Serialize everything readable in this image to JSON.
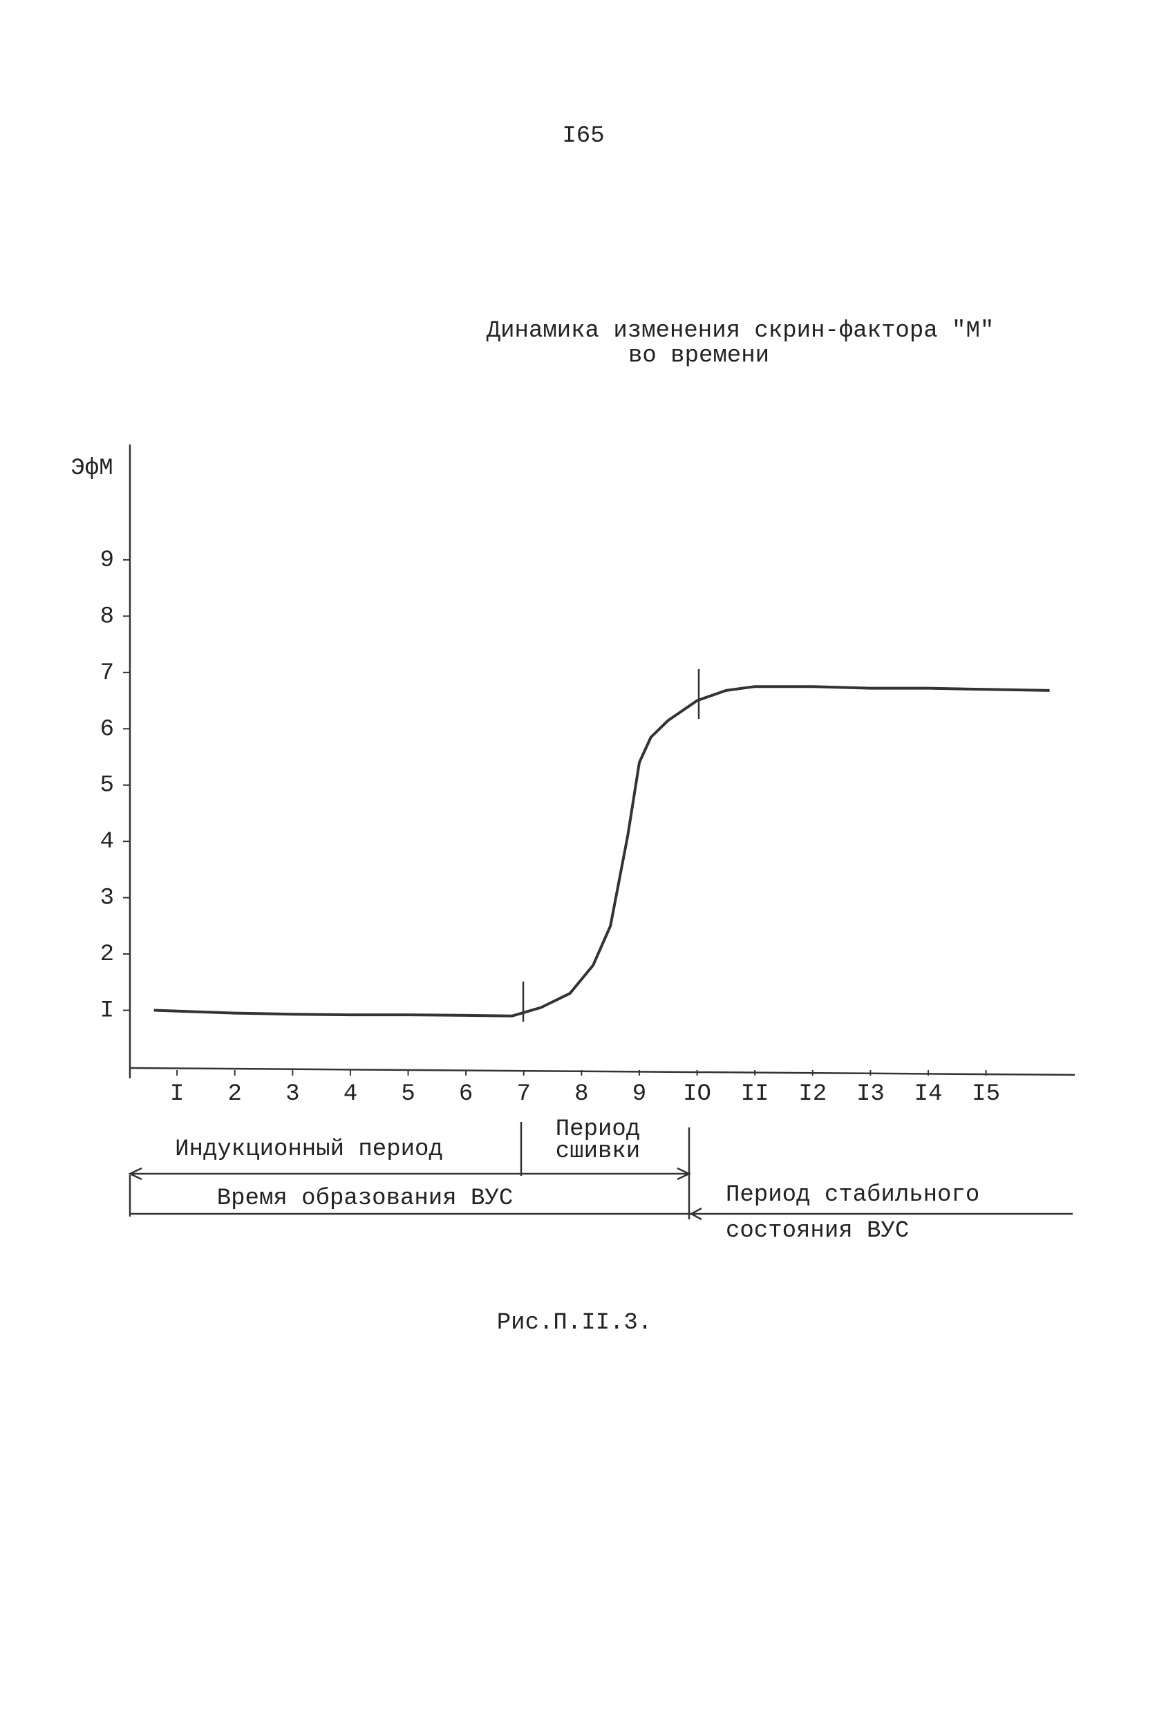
{
  "page_number": "I65",
  "caption": "Рис.П.II.3.",
  "chart_data": {
    "type": "line",
    "title": "Динамика изменения скрин-фактора \"М\"",
    "subtitle": "во времени",
    "y_label": "ЭфМ",
    "x": [
      0.6,
      2,
      3,
      4,
      5,
      6,
      6.8,
      7.3,
      7.8,
      8.2,
      8.5,
      8.8,
      9.0,
      9.2,
      9.5,
      10.0,
      10.5,
      11,
      12,
      13,
      14,
      15,
      16.1
    ],
    "values": [
      1.0,
      0.95,
      0.93,
      0.92,
      0.92,
      0.91,
      0.9,
      1.05,
      1.3,
      1.8,
      2.5,
      4.1,
      5.4,
      5.85,
      6.15,
      6.5,
      6.68,
      6.75,
      6.75,
      6.72,
      6.72,
      6.7,
      6.68
    ],
    "color": "#333333",
    "xlim": [
      0,
      16.5
    ],
    "ylim": [
      0,
      11
    ],
    "xticks": [
      {
        "value": 1,
        "label": "I"
      },
      2,
      3,
      4,
      5,
      6,
      7,
      8,
      9,
      {
        "value": 10,
        "label": "IO"
      },
      {
        "value": 11,
        "label": "II"
      },
      {
        "value": 12,
        "label": "I2"
      },
      {
        "value": 13,
        "label": "I3"
      },
      {
        "value": 14,
        "label": "I4"
      },
      {
        "value": 15,
        "label": "I5"
      }
    ],
    "yticks": [
      {
        "value": 1,
        "label": "I"
      },
      2,
      3,
      4,
      5,
      6,
      7,
      8,
      9
    ],
    "grid": false,
    "annotations": [
      "Индукционный период",
      "Период",
      "сшивки",
      "Время образования ВУС",
      "Период стабильного",
      "состояния ВУС"
    ]
  }
}
